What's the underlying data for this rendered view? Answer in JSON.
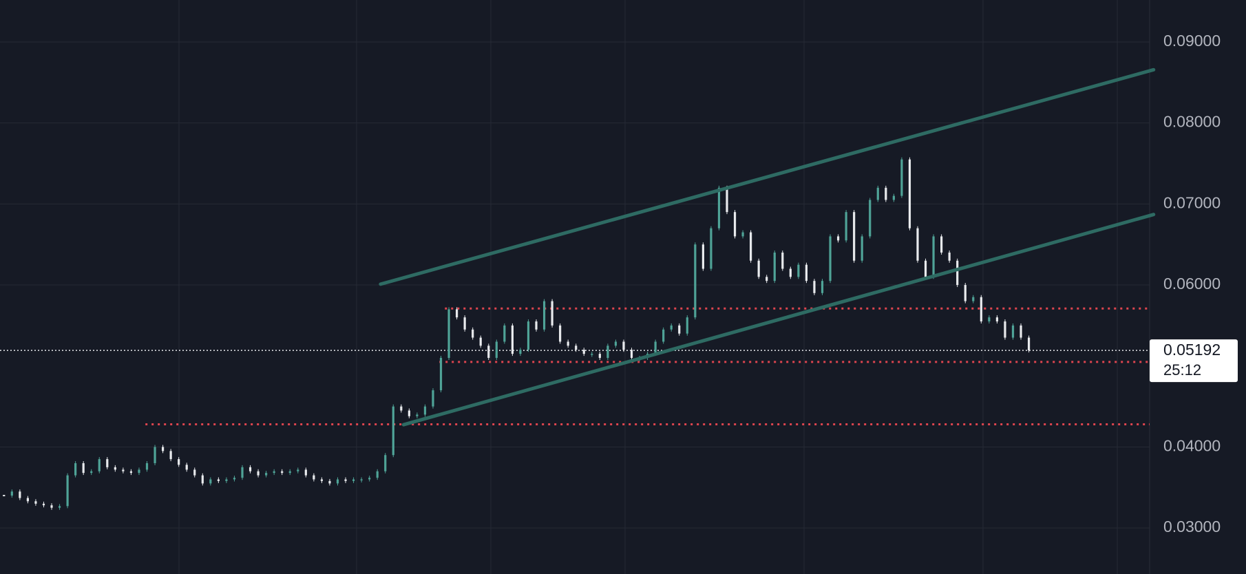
{
  "chart_data": {
    "type": "candlestick",
    "xlim": [
      -0.5,
      144.2
    ],
    "ylim": [
      0.02432,
      0.09518
    ],
    "yticks": [
      {
        "value": 0.03,
        "label": "0.03000"
      },
      {
        "value": 0.04,
        "label": "0.04000"
      },
      {
        "value": 0.06,
        "label": "0.06000"
      },
      {
        "value": 0.07,
        "label": "0.07000"
      },
      {
        "value": 0.08,
        "label": "0.08000"
      },
      {
        "value": 0.09,
        "label": "0.09000"
      }
    ],
    "grid": true,
    "up_color": "#4fa397",
    "down_color": "#e8eaed",
    "series": [
      {
        "values": [
          0.034,
          0.0345,
          0.0337,
          0.0333,
          0.033,
          0.0328,
          0.0325,
          0.0327,
          0.0365,
          0.038,
          0.0368,
          0.037,
          0.0385,
          0.0375,
          0.0372,
          0.037,
          0.0368,
          0.0372,
          0.038,
          0.04,
          0.0395,
          0.0385,
          0.0378,
          0.0372,
          0.0365,
          0.0355,
          0.036,
          0.0358,
          0.036,
          0.0362,
          0.0375,
          0.037,
          0.0365,
          0.0368,
          0.037,
          0.0368,
          0.037,
          0.0372,
          0.0365,
          0.036,
          0.0358,
          0.0355,
          0.036,
          0.0358,
          0.036,
          0.036,
          0.0362,
          0.037,
          0.039,
          0.045,
          0.0445,
          0.0438,
          0.044,
          0.045,
          0.047,
          0.051,
          0.057,
          0.056,
          0.0545,
          0.0535,
          0.0525,
          0.051,
          0.053,
          0.055,
          0.0515,
          0.052,
          0.0555,
          0.0545,
          0.058,
          0.055,
          0.053,
          0.0525,
          0.052,
          0.0515,
          0.0515,
          0.051,
          0.0525,
          0.053,
          0.052,
          0.051,
          0.051,
          0.0515,
          0.053,
          0.0545,
          0.055,
          0.054,
          0.056,
          0.065,
          0.062,
          0.067,
          0.072,
          0.069,
          0.066,
          0.0665,
          0.063,
          0.061,
          0.0605,
          0.064,
          0.062,
          0.061,
          0.0625,
          0.0605,
          0.059,
          0.0605,
          0.066,
          0.0655,
          0.069,
          0.063,
          0.066,
          0.0705,
          0.072,
          0.0705,
          0.071,
          0.0755,
          0.067,
          0.063,
          0.061,
          0.066,
          0.064,
          0.063,
          0.06,
          0.058,
          0.0585,
          0.0555,
          0.056,
          0.0555,
          0.0535,
          0.055,
          0.0535,
          0.05192
        ]
      }
    ],
    "trend_lines": [
      {
        "color": "#2e6b63",
        "x": [
          47.4,
          144.7
        ],
        "y": [
          0.0601,
          0.08657
        ]
      },
      {
        "color": "#2e6b63",
        "x": [
          50.3,
          144.7
        ],
        "y": [
          0.04275,
          0.0687
        ]
      }
    ],
    "levels": [
      {
        "value": 0.0571,
        "start": 55.5,
        "color": "#e0454f"
      },
      {
        "value": 0.0505,
        "start": 54.8,
        "color": "#e0454f"
      },
      {
        "value": 0.0428,
        "start": 17.8,
        "color": "#e0454f"
      }
    ],
    "last_price": 0.05192,
    "countdown": "25:12"
  }
}
